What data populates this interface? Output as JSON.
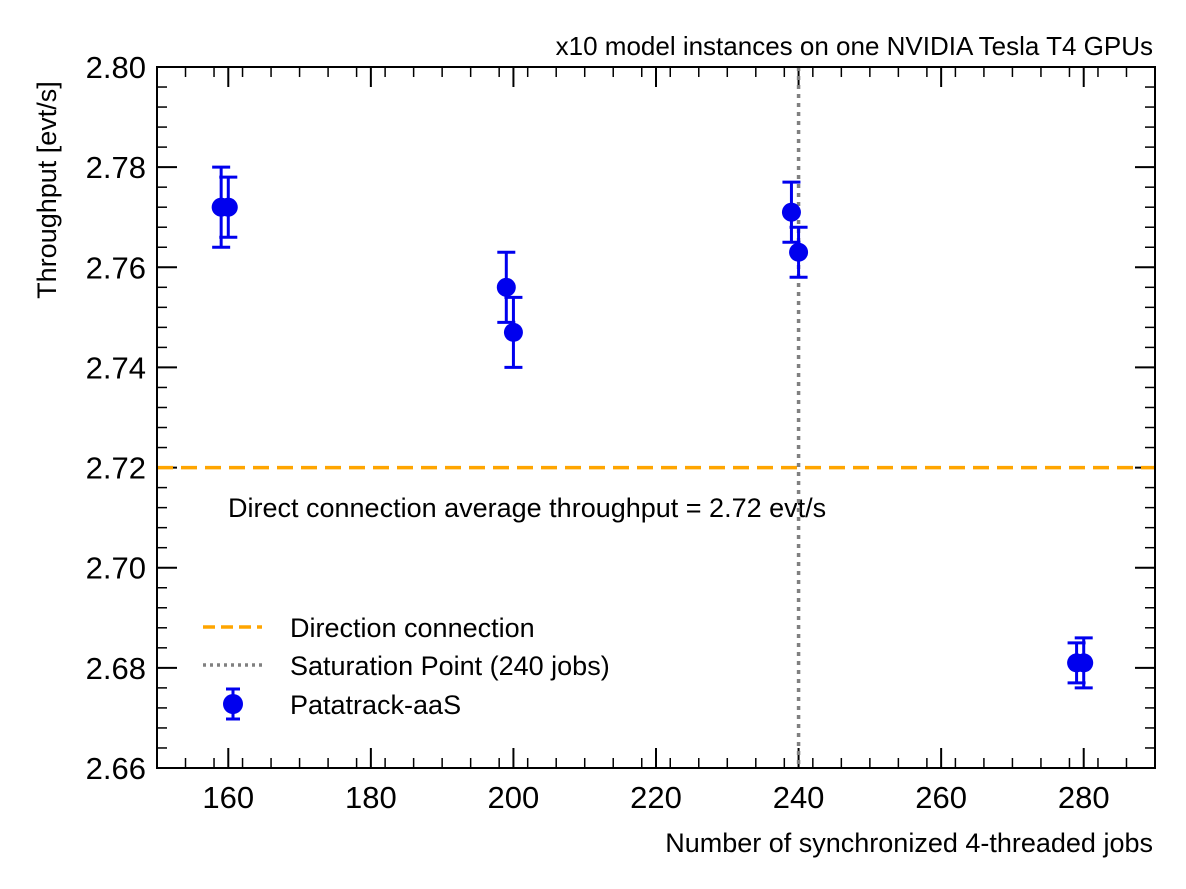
{
  "chart_data": {
    "type": "scatter",
    "title": "x10 model instances on one NVIDIA Tesla T4 GPUs",
    "xlabel": "Number of synchronized 4-threaded jobs",
    "ylabel": "Throughput [evt/s]",
    "xlim": [
      150,
      290
    ],
    "ylim": [
      2.66,
      2.8
    ],
    "xticks": [
      160,
      180,
      200,
      220,
      240,
      260,
      280
    ],
    "yticks": [
      "2.66",
      "2.68",
      "2.70",
      "2.72",
      "2.74",
      "2.76",
      "2.78",
      "2.80"
    ],
    "series": [
      {
        "name": "Patatrack-aaS",
        "color": "#0000ee",
        "points": [
          {
            "x": 159,
            "y": 2.772,
            "yerr": 0.008
          },
          {
            "x": 160,
            "y": 2.772,
            "yerr": 0.006
          },
          {
            "x": 199,
            "y": 2.756,
            "yerr": 0.007
          },
          {
            "x": 200,
            "y": 2.747,
            "yerr": 0.007
          },
          {
            "x": 239,
            "y": 2.771,
            "yerr": 0.006
          },
          {
            "x": 240,
            "y": 2.763,
            "yerr": 0.005
          },
          {
            "x": 279,
            "y": 2.681,
            "yerr": 0.004
          },
          {
            "x": 280,
            "y": 2.681,
            "yerr": 0.005
          }
        ]
      }
    ],
    "reference_lines": [
      {
        "orientation": "horizontal",
        "value": 2.72,
        "style": "dashed",
        "color": "#ffa500",
        "name": "Direction connection"
      },
      {
        "orientation": "vertical",
        "value": 240,
        "style": "dotted",
        "color": "#808080",
        "name": "Saturation Point (240 jobs)"
      }
    ],
    "annotation": "Direct connection average throughput = 2.72 evt/s",
    "legend": {
      "placement": "lower-left",
      "entries": [
        "Direction connection",
        "Saturation Point (240 jobs)",
        "Patatrack-aaS"
      ]
    },
    "grid": false
  }
}
